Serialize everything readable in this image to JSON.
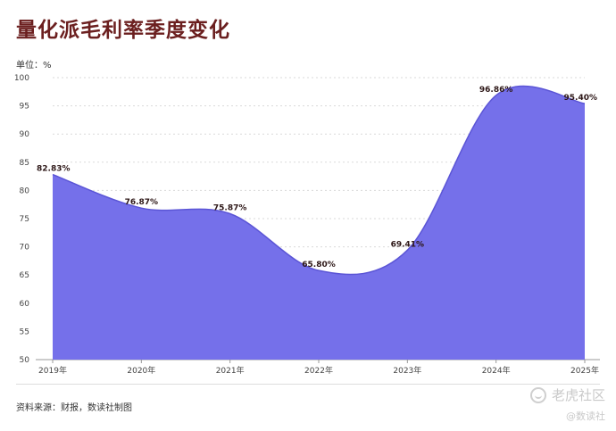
{
  "header": {
    "title": "量化派毛利率季度变化",
    "unit": "单位：%"
  },
  "footer": {
    "source": "资料来源：财报，数读社制图",
    "watermark_main": "老虎社区",
    "watermark_sub": "@数读社"
  },
  "colors": {
    "area_fill": "#7570ea",
    "area_stroke": "#5b55d6",
    "title": "#6b1f1f"
  },
  "chart_data": {
    "type": "area",
    "title": "量化派毛利率季度变化",
    "ylabel": "单位：%",
    "categories": [
      "2019年",
      "2020年",
      "2021年",
      "2022年",
      "2023年",
      "2024年",
      "2025年"
    ],
    "values": [
      82.83,
      76.87,
      75.87,
      65.8,
      69.41,
      96.86,
      95.4
    ],
    "data_labels": [
      "82.83%",
      "76.87%",
      "75.87%",
      "65.80%",
      "69.41%",
      "96.86%",
      "95.40%"
    ],
    "ylim": [
      50,
      100
    ],
    "yticks": [
      50,
      55,
      60,
      65,
      70,
      75,
      80,
      85,
      90,
      95,
      100
    ],
    "grid": true,
    "smooth": true
  }
}
